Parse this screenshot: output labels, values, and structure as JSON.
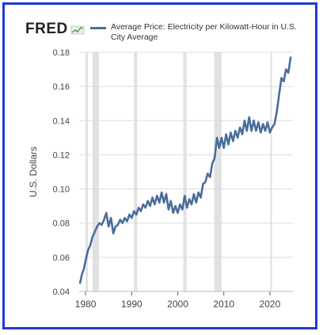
{
  "brand": {
    "logo_text": "FRED",
    "logo_icon": "line-chart-icon"
  },
  "colors": {
    "border": "#1f3bd6",
    "series": "#4a6e9c",
    "recession": "#e1e1e1",
    "grid": "#dddddd"
  },
  "chart_data": {
    "type": "line",
    "title": "",
    "xlabel": "",
    "ylabel": "U.S. Dollars",
    "xlim": [
      1978.6,
      2025.0
    ],
    "ylim": [
      0.04,
      0.18
    ],
    "x_ticks": [
      1980,
      1990,
      2000,
      2010,
      2020
    ],
    "x_tick_labels": [
      "1980",
      "1990",
      "2000",
      "2010",
      "2020"
    ],
    "y_ticks": [
      0.04,
      0.06,
      0.08,
      0.1,
      0.12,
      0.14,
      0.16,
      0.18
    ],
    "y_tick_labels": [
      "0.04",
      "0.06",
      "0.08",
      "0.10",
      "0.12",
      "0.14",
      "0.16",
      "0.18"
    ],
    "grid": "horizontal",
    "legend": "top",
    "recessions": [
      [
        1980.0,
        1980.5
      ],
      [
        1981.5,
        1982.9
      ],
      [
        1990.5,
        1991.2
      ],
      [
        2001.2,
        2001.9
      ],
      [
        2007.9,
        2009.5
      ],
      [
        2020.1,
        2020.4
      ]
    ],
    "series": [
      {
        "name": "Average Price: Electricity per Kilowatt-Hour in U.S. City Average",
        "x": [
          1978.8,
          1979.2,
          1979.6,
          1980.0,
          1980.5,
          1981.0,
          1981.5,
          1982.0,
          1982.5,
          1983.0,
          1983.5,
          1984.0,
          1984.5,
          1985.0,
          1985.5,
          1986.0,
          1986.5,
          1987.0,
          1987.5,
          1988.0,
          1988.5,
          1989.0,
          1989.5,
          1990.0,
          1990.5,
          1991.0,
          1991.5,
          1992.0,
          1992.5,
          1993.0,
          1993.5,
          1994.0,
          1994.5,
          1995.0,
          1995.5,
          1996.0,
          1996.5,
          1997.0,
          1997.5,
          1998.0,
          1998.5,
          1999.0,
          1999.5,
          2000.0,
          2000.5,
          2001.0,
          2001.5,
          2002.0,
          2002.5,
          2003.0,
          2003.5,
          2004.0,
          2004.5,
          2005.0,
          2005.5,
          2006.0,
          2006.5,
          2007.0,
          2007.5,
          2008.0,
          2008.5,
          2009.0,
          2009.5,
          2010.0,
          2010.5,
          2011.0,
          2011.5,
          2012.0,
          2012.5,
          2013.0,
          2013.5,
          2014.0,
          2014.5,
          2015.0,
          2015.5,
          2016.0,
          2016.5,
          2017.0,
          2017.5,
          2018.0,
          2018.5,
          2019.0,
          2019.5,
          2020.0,
          2020.5,
          2021.0,
          2021.5,
          2022.0,
          2022.5,
          2023.0,
          2023.5,
          2024.0,
          2024.5
        ],
        "y": [
          0.045,
          0.05,
          0.053,
          0.058,
          0.064,
          0.067,
          0.072,
          0.075,
          0.078,
          0.08,
          0.079,
          0.082,
          0.086,
          0.078,
          0.083,
          0.074,
          0.078,
          0.079,
          0.082,
          0.08,
          0.083,
          0.081,
          0.085,
          0.083,
          0.087,
          0.085,
          0.089,
          0.087,
          0.091,
          0.089,
          0.093,
          0.09,
          0.095,
          0.091,
          0.096,
          0.092,
          0.098,
          0.092,
          0.097,
          0.088,
          0.093,
          0.086,
          0.09,
          0.086,
          0.091,
          0.088,
          0.096,
          0.089,
          0.094,
          0.091,
          0.097,
          0.092,
          0.098,
          0.095,
          0.103,
          0.104,
          0.109,
          0.107,
          0.115,
          0.118,
          0.13,
          0.124,
          0.13,
          0.124,
          0.132,
          0.126,
          0.133,
          0.128,
          0.134,
          0.13,
          0.136,
          0.132,
          0.14,
          0.134,
          0.142,
          0.134,
          0.14,
          0.134,
          0.139,
          0.133,
          0.138,
          0.134,
          0.139,
          0.133,
          0.136,
          0.138,
          0.145,
          0.155,
          0.165,
          0.163,
          0.17,
          0.168,
          0.177
        ]
      }
    ]
  }
}
